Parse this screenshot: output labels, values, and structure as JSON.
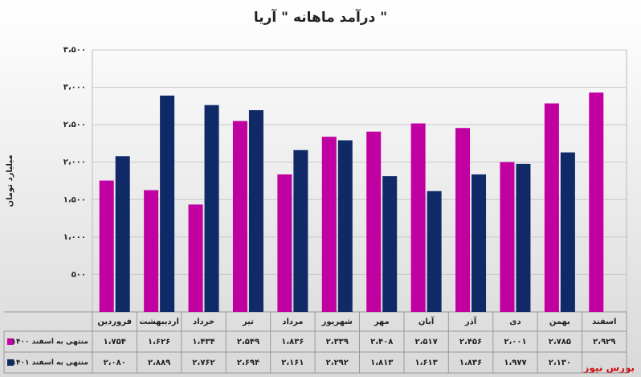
{
  "chart_data": {
    "type": "bar",
    "title": "درآمد ماهانه \" آریا \"",
    "y_label": "میلیارد تومان",
    "categories": [
      "فروردین",
      "اردیبهشت",
      "خرداد",
      "تیر",
      "مرداد",
      "شهریور",
      "مهر",
      "آبان",
      "آذر",
      "دی",
      "بهمن",
      "اسفند"
    ],
    "series": [
      {
        "name": "منتهی به اسفند ۱۴۰۰",
        "color": "#c000a0",
        "values": [
          1754,
          1626,
          1434,
          2549,
          1836,
          2339,
          2408,
          2517,
          2456,
          2001,
          2785,
          2929
        ],
        "value_labels": [
          "۱،۷۵۴",
          "۱،۶۲۶",
          "۱،۴۳۴",
          "۲،۵۴۹",
          "۱،۸۳۶",
          "۲،۳۳۹",
          "۲،۴۰۸",
          "۲،۵۱۷",
          "۲،۴۵۶",
          "۲،۰۰۱",
          "۲،۷۸۵",
          "۲،۹۲۹"
        ]
      },
      {
        "name": "منتهی به اسفند ۱۴۰۱",
        "color": "#0f2a66",
        "values": [
          2080,
          2889,
          2762,
          2694,
          2161,
          2292,
          1813,
          1613,
          1836,
          1977,
          2130,
          null
        ],
        "value_labels": [
          "۲،۰۸۰",
          "۲،۸۸۹",
          "۲،۷۶۲",
          "۲،۶۹۴",
          "۲،۱۶۱",
          "۲،۲۹۲",
          "۱،۸۱۳",
          "۱،۶۱۳",
          "۱،۸۳۶",
          "۱،۹۷۷",
          "۲،۱۳۰",
          null
        ]
      }
    ],
    "ylim": [
      0,
      3500
    ],
    "yticks": [
      {
        "value": 500,
        "label": "۵۰۰"
      },
      {
        "value": 1000,
        "label": "۱،۰۰۰"
      },
      {
        "value": 1500,
        "label": "۱،۵۰۰"
      },
      {
        "value": 2000,
        "label": "۲،۰۰۰"
      },
      {
        "value": 2500,
        "label": "۲،۵۰۰"
      },
      {
        "value": 3000,
        "label": "۳،۰۰۰"
      },
      {
        "value": 3500,
        "label": "۳،۵۰۰"
      }
    ],
    "grid": true,
    "source": "بورس نیوز"
  }
}
